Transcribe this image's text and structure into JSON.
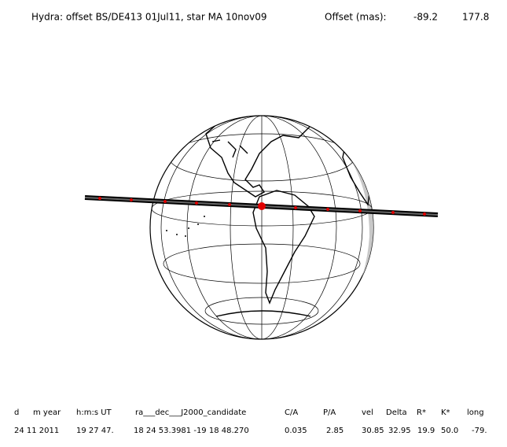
{
  "header": {
    "title": "Hydra: offset BS/DE413 01Jul11, star MA 10nov09",
    "offset_label": "Offset (mas):",
    "offset_values": [
      "-89.2",
      "177.8"
    ]
  },
  "table": {
    "columns": [
      "d",
      "m year",
      "h:m:s UT",
      "ra___dec___J2000_candidate",
      "C/A",
      "P/A",
      "vel",
      "Delta",
      "R*",
      "K*",
      "long"
    ],
    "rows": [
      [
        "24 11 2011",
        "19 27 47.",
        "18 24 53.3981 -19 18 48.270",
        "0.035",
        "2.85",
        "30.85",
        "32.95",
        "19.9",
        "50.0",
        "-79."
      ]
    ]
  }
}
